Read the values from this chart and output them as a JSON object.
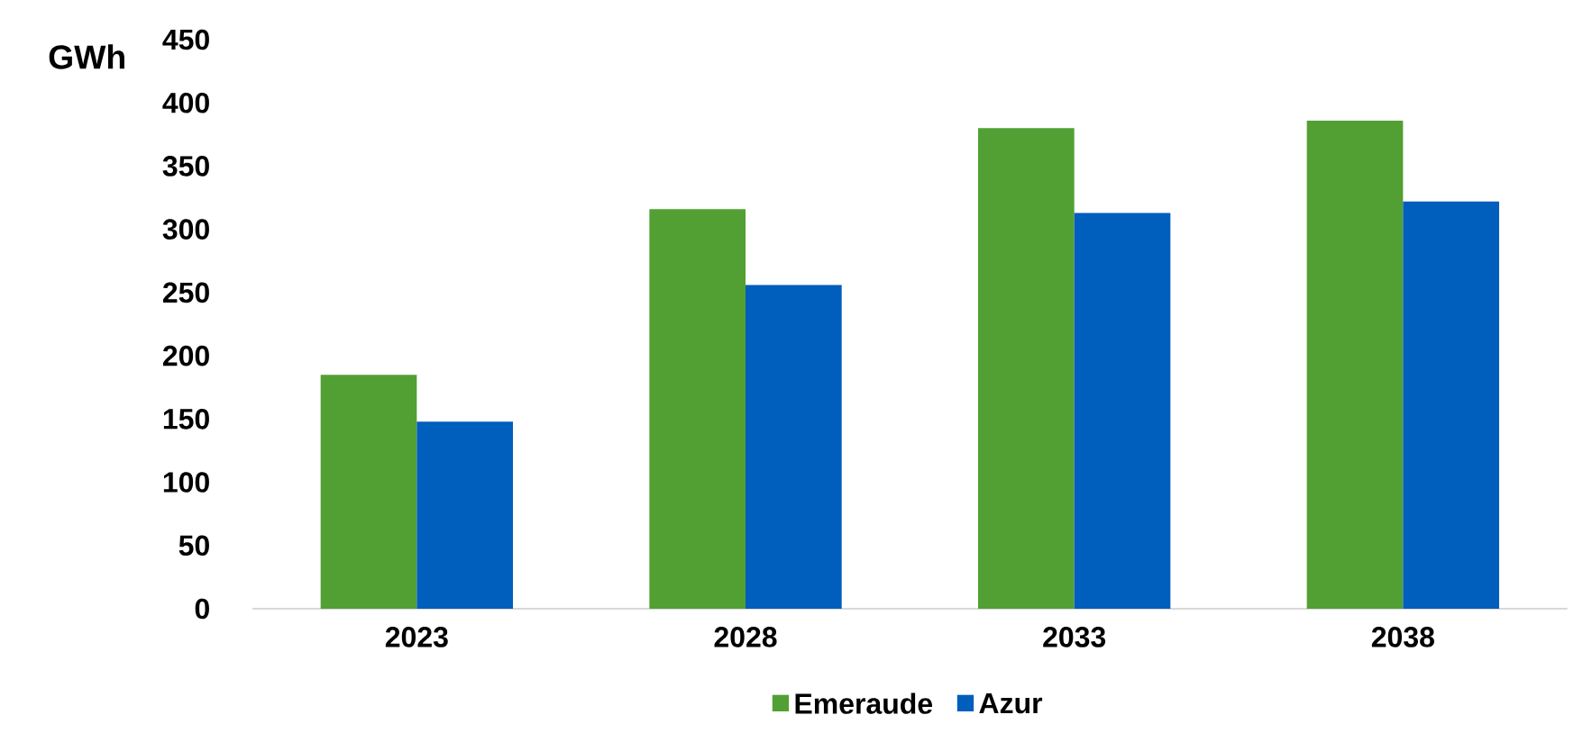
{
  "chart_data": {
    "type": "bar",
    "ylabel": "GWh",
    "categories": [
      "2023",
      "2028",
      "2033",
      "2038"
    ],
    "series": [
      {
        "name": "Emeraude",
        "color": "#52a033",
        "values": [
          185,
          316,
          380,
          386
        ]
      },
      {
        "name": "Azur",
        "color": "#005ebc",
        "values": [
          148,
          256,
          313,
          322
        ]
      }
    ],
    "ylim": [
      0,
      450
    ],
    "yticks": [
      0,
      50,
      100,
      150,
      200,
      250,
      300,
      350,
      400,
      450
    ],
    "legend": "bottom",
    "grid": false
  }
}
